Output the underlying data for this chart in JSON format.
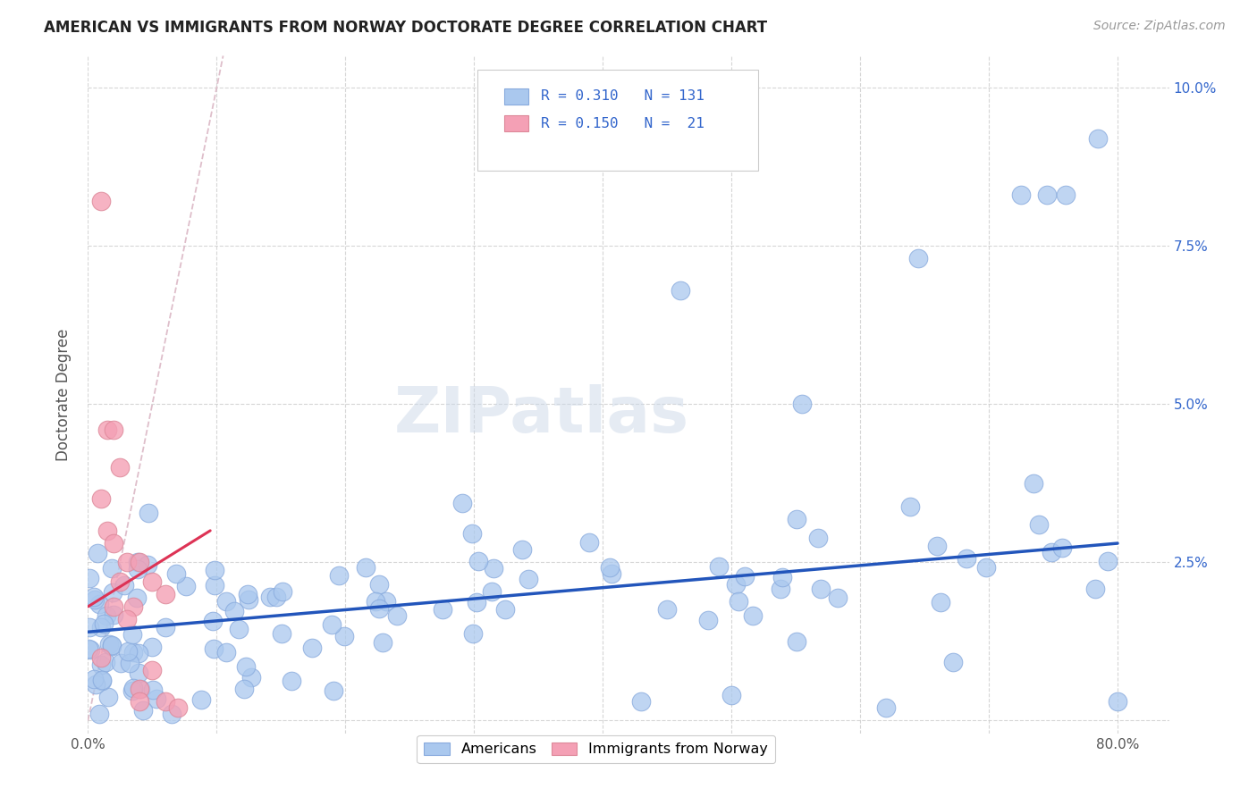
{
  "title": "AMERICAN VS IMMIGRANTS FROM NORWAY DOCTORATE DEGREE CORRELATION CHART",
  "source": "Source: ZipAtlas.com",
  "ylabel": "Doctorate Degree",
  "watermark": "ZIPatlas",
  "xlim": [
    0.0,
    0.84
  ],
  "ylim": [
    -0.002,
    0.105
  ],
  "american_R": "0.310",
  "american_N": "131",
  "norway_R": "0.150",
  "norway_N": "21",
  "american_color": "#aac8ee",
  "american_edge_color": "#88aadd",
  "american_line_color": "#2255bb",
  "norway_color": "#f4a0b5",
  "norway_edge_color": "#dd8899",
  "norway_line_color": "#dd3355",
  "diagonal_color": "#ddbbc8",
  "background_color": "#ffffff",
  "grid_color": "#cccccc",
  "title_color": "#222222",
  "source_color": "#999999",
  "label_color": "#555555",
  "r_label_color": "#3366cc",
  "am_line_x0": 0.0,
  "am_line_x1": 0.8,
  "am_line_y0": 0.014,
  "am_line_y1": 0.028,
  "nor_line_x0": 0.0,
  "nor_line_x1": 0.095,
  "nor_line_y0": 0.018,
  "nor_line_y1": 0.03
}
